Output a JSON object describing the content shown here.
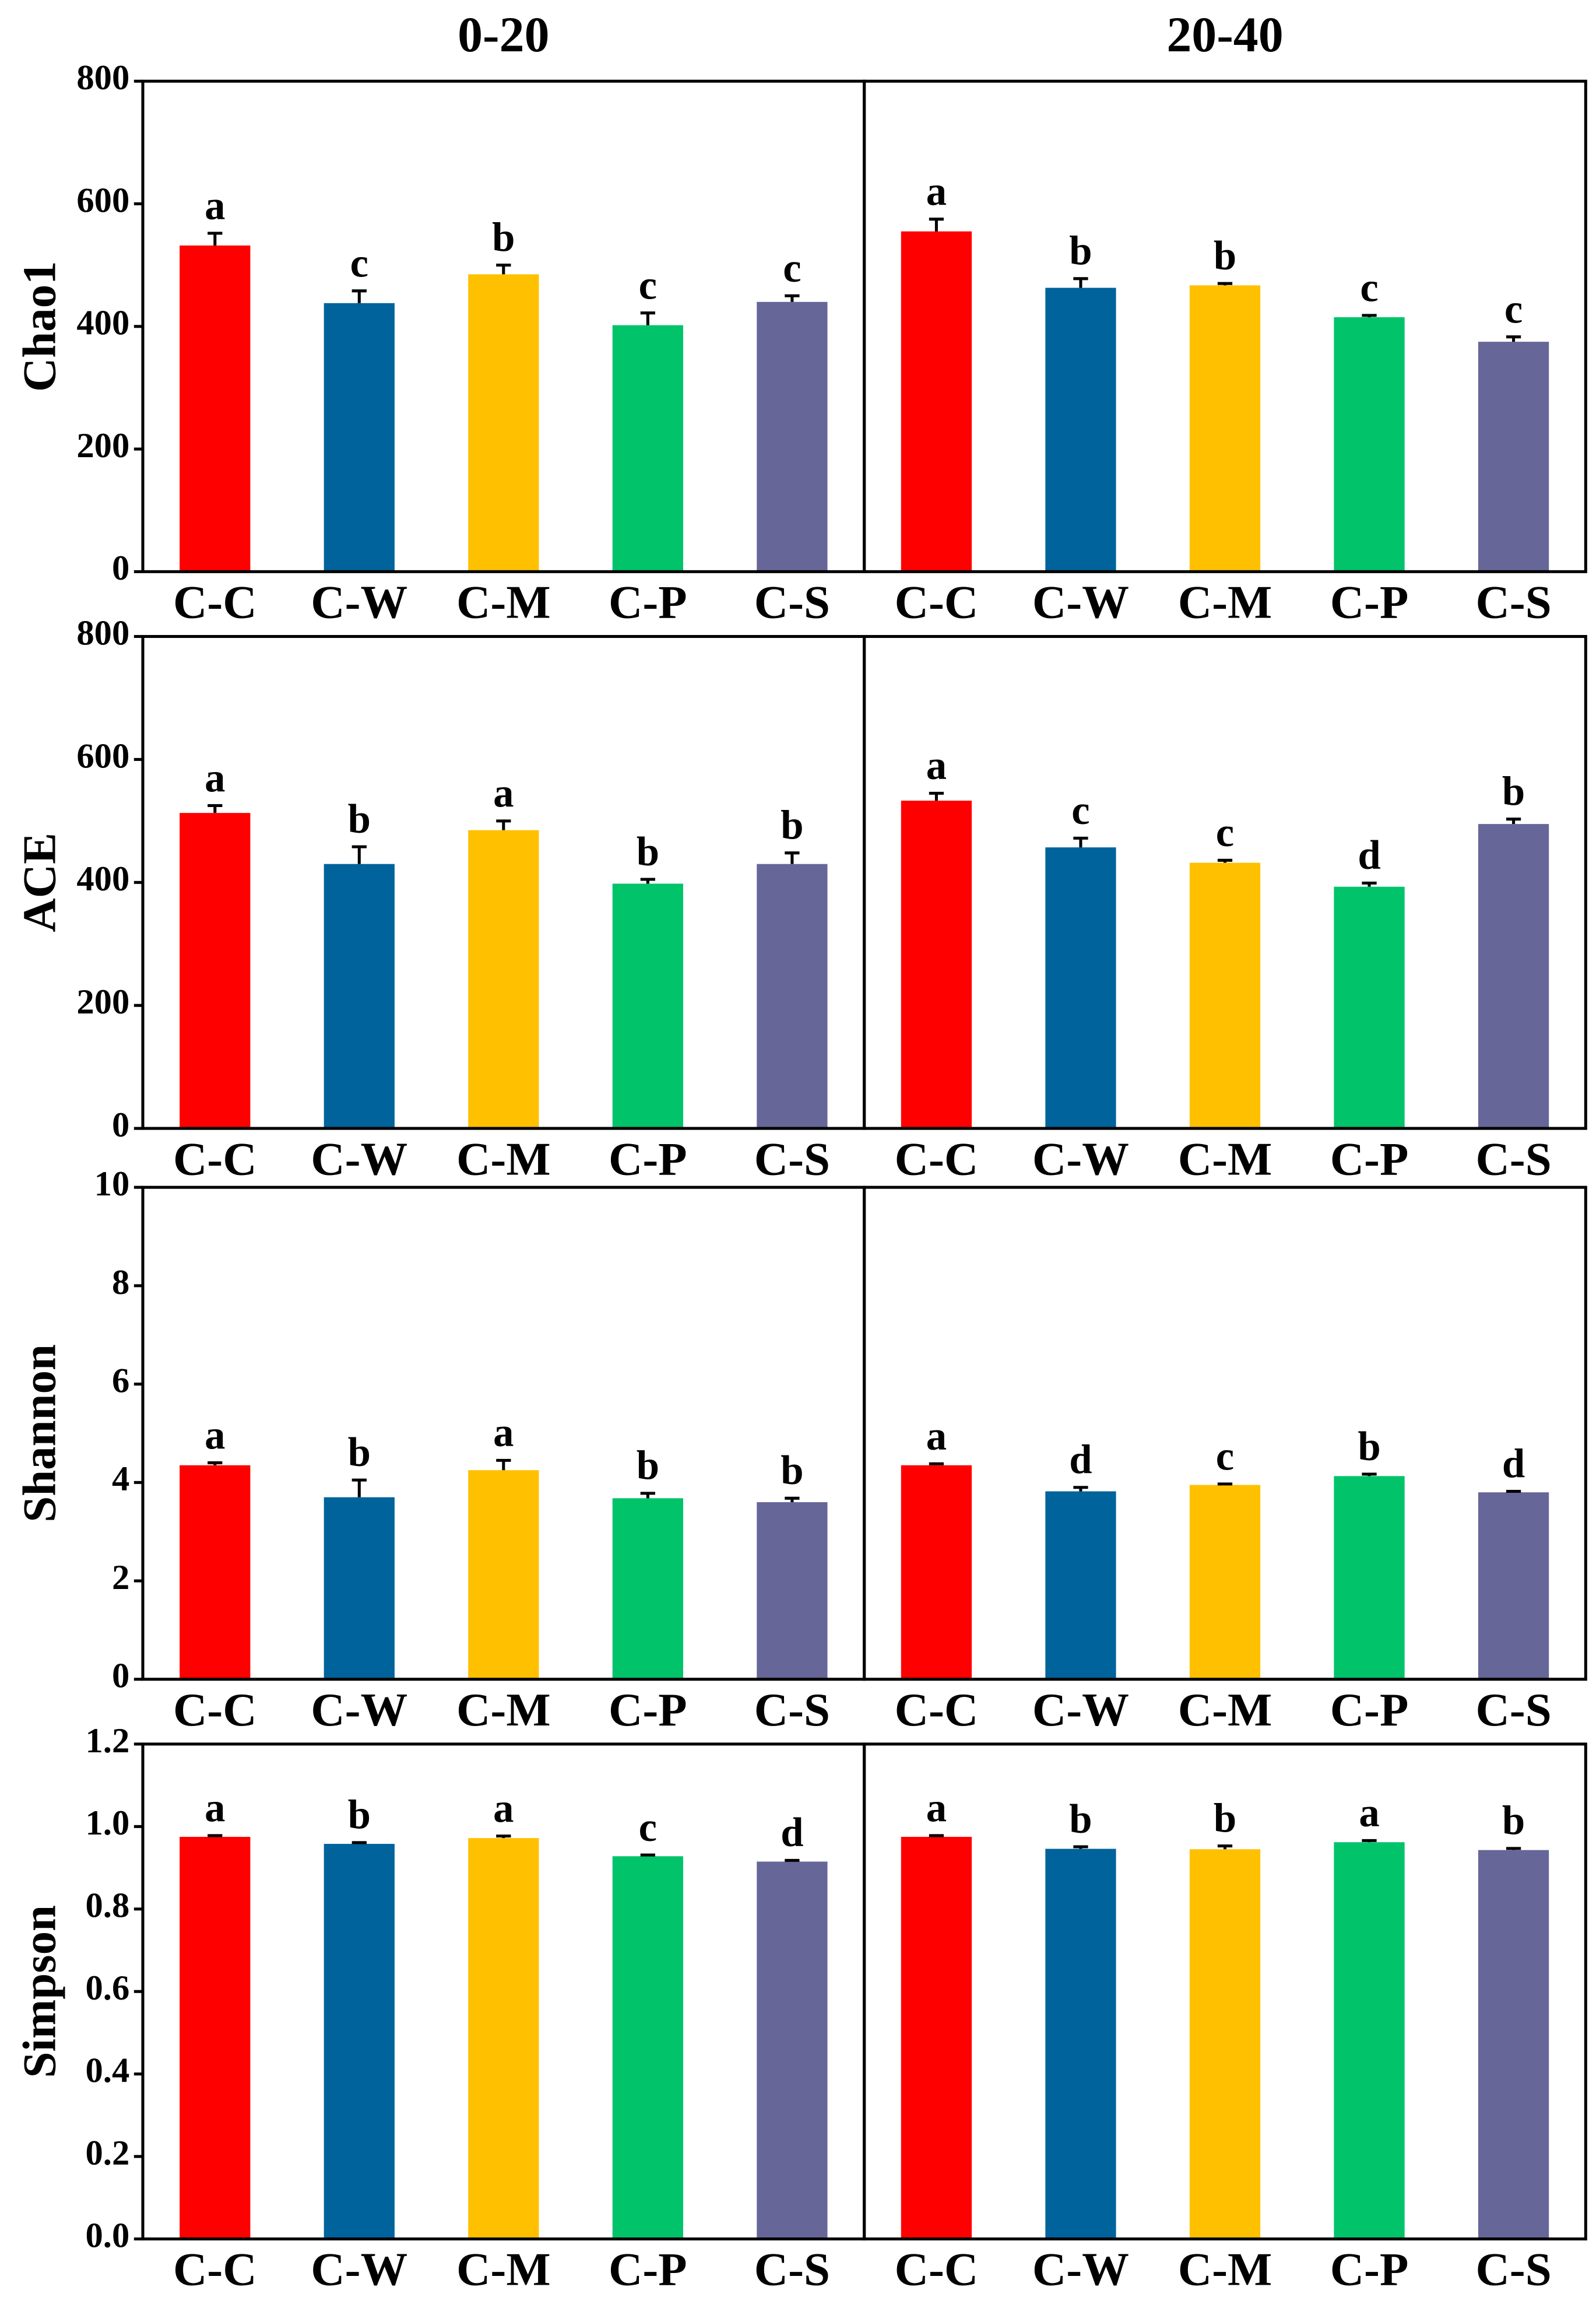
{
  "chart_data": [
    {
      "type": "bar",
      "title": "0-20",
      "ylabel": "Chao1",
      "categories": [
        "C-C",
        "C-W",
        "C-M",
        "C-P",
        "C-S"
      ],
      "values": [
        532,
        438,
        485,
        402,
        440
      ],
      "errors": [
        20,
        20,
        15,
        20,
        10
      ],
      "annotations": [
        "a",
        "c",
        "b",
        "c",
        "c"
      ],
      "colors": [
        "#ff0000",
        "#00639b",
        "#ffc000",
        "#00c36a",
        "#666699"
      ],
      "ylim": [
        0,
        800
      ],
      "yticks": [
        0,
        200,
        400,
        600,
        800
      ]
    },
    {
      "type": "bar",
      "title": "20-40",
      "categories": [
        "C-C",
        "C-W",
        "C-M",
        "C-P",
        "C-S"
      ],
      "values": [
        555,
        463,
        467,
        415,
        375
      ],
      "errors": [
        20,
        15,
        3,
        3,
        8
      ],
      "annotations": [
        "a",
        "b",
        "b",
        "c",
        "c"
      ],
      "colors": [
        "#ff0000",
        "#00639b",
        "#ffc000",
        "#00c36a",
        "#666699"
      ],
      "ylim": [
        0,
        800
      ]
    },
    {
      "type": "bar",
      "ylabel": "ACE",
      "categories": [
        "C-C",
        "C-W",
        "C-M",
        "C-P",
        "C-S"
      ],
      "values": [
        513,
        430,
        485,
        398,
        430
      ],
      "errors": [
        12,
        28,
        15,
        7,
        18
      ],
      "annotations": [
        "a",
        "b",
        "a",
        "b",
        "b"
      ],
      "colors": [
        "#ff0000",
        "#00639b",
        "#ffc000",
        "#00c36a",
        "#666699"
      ],
      "ylim": [
        0,
        800
      ],
      "yticks": [
        0,
        200,
        400,
        600,
        800
      ]
    },
    {
      "type": "bar",
      "categories": [
        "C-C",
        "C-W",
        "C-M",
        "C-P",
        "C-S"
      ],
      "values": [
        533,
        457,
        432,
        393,
        495
      ],
      "errors": [
        12,
        15,
        4,
        6,
        8
      ],
      "annotations": [
        "a",
        "c",
        "c",
        "d",
        "b"
      ],
      "colors": [
        "#ff0000",
        "#00639b",
        "#ffc000",
        "#00c36a",
        "#666699"
      ],
      "ylim": [
        0,
        800
      ]
    },
    {
      "type": "bar",
      "ylabel": "Shannon",
      "categories": [
        "C-C",
        "C-W",
        "C-M",
        "C-P",
        "C-S"
      ],
      "values": [
        4.35,
        3.7,
        4.25,
        3.68,
        3.6
      ],
      "errors": [
        0.05,
        0.35,
        0.2,
        0.1,
        0.08
      ],
      "annotations": [
        "a",
        "b",
        "a",
        "b",
        "b"
      ],
      "colors": [
        "#ff0000",
        "#00639b",
        "#ffc000",
        "#00c36a",
        "#666699"
      ],
      "ylim": [
        0,
        10
      ],
      "yticks": [
        0,
        2,
        4,
        6,
        8,
        10
      ]
    },
    {
      "type": "bar",
      "categories": [
        "C-C",
        "C-W",
        "C-M",
        "C-P",
        "C-S"
      ],
      "values": [
        4.35,
        3.82,
        3.95,
        4.13,
        3.8
      ],
      "errors": [
        0.03,
        0.08,
        0.02,
        0.04,
        0.02
      ],
      "annotations": [
        "a",
        "d",
        "c",
        "b",
        "d"
      ],
      "colors": [
        "#ff0000",
        "#00639b",
        "#ffc000",
        "#00c36a",
        "#666699"
      ],
      "ylim": [
        0,
        10
      ]
    },
    {
      "type": "bar",
      "ylabel": "Simpson",
      "categories": [
        "C-C",
        "C-W",
        "C-M",
        "C-P",
        "C-S"
      ],
      "values": [
        0.975,
        0.958,
        0.972,
        0.928,
        0.915
      ],
      "errors": [
        0.003,
        0.003,
        0.005,
        0.003,
        0.003
      ],
      "annotations": [
        "a",
        "b",
        "a",
        "c",
        "d"
      ],
      "colors": [
        "#ff0000",
        "#00639b",
        "#ffc000",
        "#00c36a",
        "#666699"
      ],
      "ylim": [
        0,
        1.2
      ],
      "yticks": [
        {
          "value": 0,
          "label": "0.0"
        },
        0.2,
        0.4,
        0.6,
        0.8,
        {
          "value": 1,
          "label": "1.0"
        },
        1.2
      ]
    },
    {
      "type": "bar",
      "categories": [
        "C-C",
        "C-W",
        "C-M",
        "C-P",
        "C-S"
      ],
      "values": [
        0.975,
        0.946,
        0.945,
        0.962,
        0.943
      ],
      "errors": [
        0.003,
        0.005,
        0.008,
        0.004,
        0.004
      ],
      "annotations": [
        "a",
        "b",
        "b",
        "a",
        "b"
      ],
      "colors": [
        "#ff0000",
        "#00639b",
        "#ffc000",
        "#00c36a",
        "#666699"
      ],
      "ylim": [
        0,
        1.2
      ]
    }
  ]
}
